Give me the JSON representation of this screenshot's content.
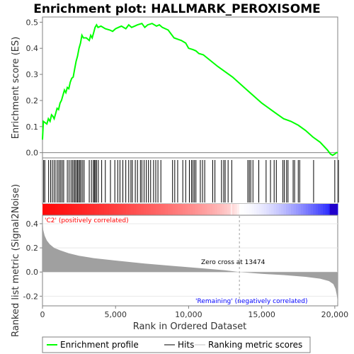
{
  "chart_data": {
    "type": "line",
    "title": "Enrichment plot: HALLMARK_PEROXISOME",
    "n_genes": 20200,
    "top_panel": {
      "ylabel": "Enrichment score (ES)",
      "ylim": [
        -0.02,
        0.52
      ],
      "yticks": [
        "0.0",
        "0.1",
        "0.2",
        "0.3",
        "0.4",
        "0.5"
      ],
      "series": [
        {
          "name": "Enrichment profile",
          "color": "#00ff00",
          "x": [
            0,
            60,
            300,
            400,
            520,
            620,
            700,
            800,
            900,
            1000,
            1100,
            1200,
            1300,
            1400,
            1500,
            1600,
            1700,
            1800,
            1900,
            2000,
            2100,
            2200,
            2300,
            2400,
            2500,
            2600,
            2700,
            2800,
            3000,
            3200,
            3300,
            3400,
            3500,
            3600,
            3700,
            3800,
            4000,
            4300,
            4600,
            4800,
            5000,
            5200,
            5400,
            5700,
            5900,
            6100,
            6300,
            6500,
            6800,
            7000,
            7200,
            7500,
            7800,
            8000,
            8200,
            8600,
            9000,
            9500,
            9800,
            10000,
            10300,
            10500,
            10700,
            11000,
            12000,
            13000,
            14000,
            15000,
            16000,
            16500,
            17000,
            17500,
            18000,
            18500,
            19000,
            19500,
            19700,
            19850,
            20000,
            20100,
            20200
          ],
          "values": [
            0.05,
            0.12,
            0.11,
            0.13,
            0.12,
            0.145,
            0.14,
            0.13,
            0.15,
            0.17,
            0.165,
            0.19,
            0.2,
            0.22,
            0.24,
            0.23,
            0.25,
            0.245,
            0.27,
            0.285,
            0.29,
            0.32,
            0.35,
            0.37,
            0.4,
            0.42,
            0.45,
            0.44,
            0.44,
            0.43,
            0.45,
            0.44,
            0.46,
            0.48,
            0.49,
            0.48,
            0.485,
            0.475,
            0.47,
            0.465,
            0.475,
            0.48,
            0.485,
            0.475,
            0.49,
            0.48,
            0.485,
            0.49,
            0.495,
            0.48,
            0.49,
            0.495,
            0.485,
            0.49,
            0.48,
            0.47,
            0.44,
            0.43,
            0.42,
            0.4,
            0.395,
            0.39,
            0.38,
            0.375,
            0.33,
            0.29,
            0.24,
            0.19,
            0.15,
            0.13,
            0.12,
            0.105,
            0.085,
            0.06,
            0.04,
            0.01,
            -0.005,
            -0.01,
            -0.005,
            0.0,
            0.0
          ]
        }
      ]
    },
    "hits": [
      80,
      160,
      420,
      560,
      680,
      800,
      920,
      1050,
      1150,
      1250,
      1350,
      1450,
      1700,
      1820,
      1950,
      2050,
      2150,
      2230,
      2320,
      2400,
      2480,
      2560,
      2640,
      2750,
      2850,
      3200,
      3350,
      3480,
      3550,
      3620,
      3700,
      3820,
      4050,
      4300,
      4650,
      4950,
      5150,
      5300,
      5500,
      5700,
      5900,
      6050,
      6150,
      6350,
      6500,
      6700,
      6800,
      6950,
      7100,
      7250,
      7400,
      7600,
      7750,
      7900,
      8100,
      8900,
      9050,
      9250,
      9600,
      9800,
      10050,
      10200,
      10300,
      10400,
      10500,
      10800,
      10950,
      11100,
      11650,
      11800,
      12250,
      12400,
      12500,
      12700,
      12950,
      14050,
      14150,
      14250,
      14400,
      14800,
      15300,
      15600,
      15850,
      16000,
      16450,
      16550,
      16700,
      16800,
      17150,
      17250,
      17500,
      17600,
      18550,
      20000,
      20250
    ],
    "bottom_panel": {
      "ylabel": "Ranked list metric (Signal2Noise)",
      "xlabel": "Rank in Ordered Dataset",
      "ylim": [
        -0.28,
        0.47
      ],
      "yticks": [
        "-0.2",
        "0.0",
        "0.2",
        "0.4"
      ],
      "xticks": [
        "0",
        "5,000",
        "10,000",
        "15,000",
        "20,000"
      ],
      "metric_profile": {
        "x": [
          0,
          50,
          150,
          300,
          500,
          800,
          1200,
          1800,
          2500,
          3500,
          5000,
          7000,
          9000,
          11000,
          12500,
          13474,
          15000,
          16500,
          18000,
          19000,
          19600,
          19900,
          20050,
          20150,
          20200
        ],
        "values": [
          0.45,
          0.35,
          0.3,
          0.26,
          0.23,
          0.2,
          0.18,
          0.155,
          0.135,
          0.115,
          0.095,
          0.07,
          0.05,
          0.03,
          0.015,
          0.0,
          -0.015,
          -0.025,
          -0.04,
          -0.055,
          -0.075,
          -0.1,
          -0.14,
          -0.2,
          -0.26
        ]
      },
      "zero_cross": 13474,
      "annotations": {
        "pos_label": "'C2' (positively correlated)",
        "neg_label": "'Remaining' (negatively correlated)",
        "zero_cross_label": "Zero cross at 13474"
      }
    },
    "legend": {
      "placement": "bottom",
      "items": [
        {
          "label": "Enrichment profile",
          "color": "#00ff00"
        },
        {
          "label": "Hits",
          "color": "#000000"
        },
        {
          "label": "Ranking metric scores",
          "color": "#c0c0c0"
        }
      ]
    },
    "colors": {
      "profile": "#00ff00",
      "metric_fill": "#a0a0a0",
      "pos_label": "#ff0000",
      "neg_label": "#0000ff",
      "heatbar_red": "#ff0000",
      "heatbar_blue": "#0000ff"
    }
  }
}
